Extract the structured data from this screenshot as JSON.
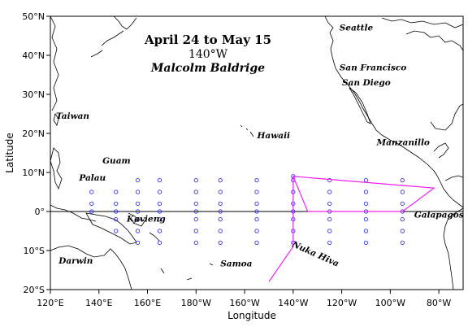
{
  "title": {
    "line1": "April 24 to May 15",
    "line2": "140°W",
    "line3": "Malcolm Baldrige"
  },
  "axes": {
    "xlabel": "Longitude",
    "ylabel": "Latitude",
    "xticks": [
      {
        "lon": 120,
        "label": "120°E"
      },
      {
        "lon": 140,
        "label": "140°E"
      },
      {
        "lon": 160,
        "label": "160°E"
      },
      {
        "lon": 180,
        "label": "180°W"
      },
      {
        "lon": 200,
        "label": "160°W"
      },
      {
        "lon": 220,
        "label": "140°W"
      },
      {
        "lon": 240,
        "label": "120°W"
      },
      {
        "lon": 260,
        "label": "100°W"
      },
      {
        "lon": 280,
        "label": "80°W"
      }
    ],
    "yticks": [
      {
        "lat": 50,
        "label": "50°N"
      },
      {
        "lat": 40,
        "label": "40°N"
      },
      {
        "lat": 30,
        "label": "30°N"
      },
      {
        "lat": 20,
        "label": "20°N"
      },
      {
        "lat": 10,
        "label": "10°N"
      },
      {
        "lat": 0,
        "label": "0°"
      },
      {
        "lat": -10,
        "label": "10°S"
      },
      {
        "lat": -20,
        "label": "20°S"
      }
    ],
    "lon_range": [
      120,
      290
    ],
    "lat_range": [
      -20,
      50
    ]
  },
  "places": [
    {
      "name": "Seattle",
      "lon": 237.7,
      "lat": 47.6
    },
    {
      "name": "San Francisco",
      "lon": 237.7,
      "lat": 37.8
    },
    {
      "name": "San Diego",
      "lon": 242.8,
      "lat": 32.7
    },
    {
      "name": "Manzanillo",
      "lon": 255.7,
      "lat": 19.1
    },
    {
      "name": "Taiwan",
      "lon": 121.0,
      "lat": 23.7
    },
    {
      "name": "Hawaii",
      "lon": 204.5,
      "lat": 20.0
    },
    {
      "name": "Guam",
      "lon": 144.8,
      "lat": 13.5
    },
    {
      "name": "Palau",
      "lon": 134.5,
      "lat": 7.5
    },
    {
      "name": "Kavieng",
      "lon": 150.8,
      "lat": -2.6
    },
    {
      "name": "Darwin",
      "lon": 130.8,
      "lat": -12.5
    },
    {
      "name": "Samoa",
      "lon": 188.0,
      "lat": -13.6
    },
    {
      "name": "Nuka Hiva",
      "lon": 220.0,
      "lat": -8.9
    },
    {
      "name": "Galapagos",
      "lon": 269.5,
      "lat": -0.7
    }
  ],
  "stations": {
    "color": "#3333ee",
    "columns": [
      {
        "lon": 137,
        "lats": [
          5,
          2,
          0
        ]
      },
      {
        "lon": 147,
        "lats": [
          5,
          2,
          0,
          -2,
          -5
        ]
      },
      {
        "lon": 156,
        "lats": [
          8,
          5,
          2,
          0,
          -2,
          -5,
          -8
        ]
      },
      {
        "lon": 165,
        "lats": [
          8,
          5,
          2,
          0,
          -2,
          -5,
          -8
        ]
      },
      {
        "lon": 180,
        "lats": [
          8,
          5,
          2,
          0,
          -2,
          -5,
          -8
        ]
      },
      {
        "lon": 190,
        "lats": [
          8,
          5,
          2,
          0,
          -2,
          -5,
          -8
        ]
      },
      {
        "lon": 205,
        "lats": [
          8,
          5,
          2,
          0,
          -2,
          -5,
          -8
        ]
      },
      {
        "lon": 220,
        "lats": [
          9,
          8,
          5,
          2,
          0,
          -2,
          -5,
          -8
        ]
      },
      {
        "lon": 235,
        "lats": [
          8,
          5,
          2,
          0,
          -2,
          -5,
          -8
        ]
      },
      {
        "lon": 250,
        "lats": [
          8,
          5,
          2,
          0,
          -2,
          -5,
          -8
        ]
      },
      {
        "lon": 265,
        "lats": [
          8,
          5,
          2,
          0,
          -2,
          -5,
          -8
        ]
      }
    ]
  },
  "cruise_track": {
    "color": "#ee22ee",
    "points": [
      [
        220,
        9
      ],
      [
        226,
        0
      ],
      [
        265,
        0
      ],
      [
        278,
        6
      ],
      [
        220,
        9
      ],
      [
        220,
        -9
      ],
      [
        210,
        -18
      ]
    ]
  },
  "colors": {
    "frame": "#000000",
    "coast": "#000000",
    "background": "#ffffff"
  }
}
